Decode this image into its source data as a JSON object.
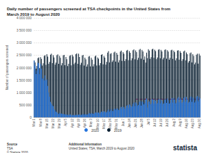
{
  "chart_data": {
    "type": "bar",
    "title": "Daily number of passengers screened at TSA checkpoints in the United States from March 2019 to August 2020",
    "y_label": "Number of passengers screened",
    "source_heading": "Source",
    "source": "TSA",
    "copyright": "© Statista 2020",
    "info_heading": "Additional Information",
    "info": "United States; TSA; March 2019 to August 2020",
    "logo": "statista",
    "categories": [
      "Mar 1",
      null,
      null,
      null,
      null,
      null,
      null,
      "Mar 8",
      null,
      null,
      null,
      null,
      null,
      null,
      "Mar 15",
      null,
      null,
      null,
      null,
      null,
      null,
      "Mar 22",
      null,
      null,
      null,
      null,
      null,
      null,
      "Mar 29",
      null,
      null,
      null,
      null,
      null,
      null,
      "Apr 5",
      null,
      null,
      null,
      null,
      null,
      null,
      "Apr 12",
      null,
      null,
      null,
      null,
      null,
      null,
      "Apr 19",
      null,
      null,
      null,
      null,
      null,
      null,
      "Apr 26",
      null,
      null,
      null,
      null,
      null,
      null,
      "May 3",
      null,
      null,
      null,
      null,
      null,
      null,
      "May 10",
      null,
      null,
      null,
      null,
      null,
      null,
      "May 17",
      null,
      null,
      null,
      null,
      null,
      null,
      "May 24",
      null,
      null,
      null,
      null,
      null,
      null,
      "May 31",
      null,
      null,
      null,
      null,
      null,
      null,
      "Jun 7",
      null,
      null,
      null,
      null,
      null,
      null,
      "Jun 14",
      null,
      null,
      null,
      null,
      null,
      null,
      "Jun 21",
      null,
      null,
      null,
      null,
      null,
      null,
      "Jun 28",
      null,
      null,
      null,
      null,
      null,
      null,
      "Jul 5",
      null,
      null,
      null,
      null,
      null,
      null,
      "Jul 12",
      null,
      null,
      null,
      null,
      null,
      null,
      "Jul 19",
      null,
      null,
      null,
      null,
      null,
      null,
      "Jul 26",
      null,
      null,
      null,
      null,
      null,
      null,
      "Aug 2",
      null,
      null,
      null,
      null,
      null,
      null,
      "Aug 9",
      null,
      null,
      null,
      null,
      null,
      null,
      "Aug 16",
      null,
      null,
      null,
      null,
      null,
      null,
      "Aug 23",
      null,
      null,
      null,
      null,
      null,
      null,
      "Aug 30",
      null
    ],
    "series": [
      {
        "name": "2020",
        "color": "#2876dd",
        "values": [
          2280000,
          2090000,
          1740000,
          1880000,
          2190000,
          2180000,
          1730000,
          2160000,
          1960000,
          1550000,
          1580000,
          1480000,
          1690000,
          1480000,
          1520000,
          1260000,
          1000000,
          830000,
          620000,
          550000,
          480000,
          450000,
          330000,
          280000,
          230000,
          200000,
          170000,
          130000,
          180000,
          150000,
          150000,
          140000,
          130000,
          130000,
          110000,
          120000,
          110000,
          100000,
          100000,
          110000,
          120000,
          90000,
          90000,
          100000,
          90000,
          90000,
          100000,
          110000,
          90000,
          110000,
          110000,
          100000,
          100000,
          120000,
          130000,
          100000,
          130000,
          120000,
          110000,
          120000,
          150000,
          170000,
          130000,
          170000,
          160000,
          140000,
          150000,
          180000,
          200000,
          170000,
          200000,
          190000,
          160000,
          180000,
          220000,
          250000,
          190000,
          250000,
          220000,
          190000,
          210000,
          270000,
          320000,
          230000,
          270000,
          340000,
          260000,
          250000,
          330000,
          350000,
          300000,
          350000,
          350000,
          300000,
          310000,
          380000,
          420000,
          330000,
          430000,
          410000,
          340000,
          370000,
          460000,
          500000,
          390000,
          520000,
          480000,
          410000,
          440000,
          540000,
          590000,
          450000,
          600000,
          560000,
          460000,
          500000,
          620000,
          650000,
          470000,
          640000,
          620000,
          520000,
          570000,
          710000,
          760000,
          390000,
          620000,
          640000,
          520000,
          550000,
          730000,
          720000,
          550000,
          710000,
          660000,
          540000,
          570000,
          710000,
          730000,
          560000,
          720000,
          650000,
          530000,
          560000,
          690000,
          740000,
          580000,
          760000,
          680000,
          550000,
          580000,
          720000,
          780000,
          590000,
          780000,
          710000,
          560000,
          590000,
          760000,
          820000,
          610000,
          790000,
          720000,
          570000,
          620000,
          780000,
          830000,
          630000,
          820000,
          730000,
          580000,
          620000,
          790000,
          840000,
          620000,
          810000,
          750000,
          590000,
          650000,
          820000,
          860000,
          640000,
          830000,
          760000
        ]
      },
      {
        "name": "2019",
        "color": "#0e2335",
        "values": [
          2280000,
          2210000,
          1960000,
          2070000,
          2380000,
          2410000,
          1980000,
          2420000,
          2350000,
          2080000,
          2170000,
          2470000,
          2500000,
          2110000,
          2540000,
          2440000,
          2150000,
          2230000,
          2520000,
          2560000,
          2180000,
          2500000,
          2410000,
          2120000,
          2200000,
          2500000,
          2530000,
          2150000,
          2470000,
          2390000,
          2090000,
          2180000,
          2490000,
          2510000,
          2100000,
          2430000,
          2340000,
          2060000,
          2150000,
          2470000,
          2500000,
          2090000,
          2520000,
          2450000,
          2140000,
          2200000,
          2540000,
          2570000,
          2150000,
          2560000,
          2430000,
          2110000,
          2190000,
          2480000,
          2510000,
          2080000,
          2400000,
          2330000,
          2040000,
          2130000,
          2440000,
          2460000,
          2050000,
          2390000,
          2320000,
          2050000,
          2140000,
          2450000,
          2480000,
          2080000,
          2410000,
          2360000,
          2090000,
          2180000,
          2510000,
          2540000,
          2130000,
          2460000,
          2400000,
          2120000,
          2230000,
          2600000,
          2660000,
          2210000,
          2550000,
          2580000,
          2230000,
          2290000,
          2610000,
          2640000,
          2240000,
          2590000,
          2520000,
          2210000,
          2300000,
          2640000,
          2680000,
          2270000,
          2620000,
          2560000,
          2260000,
          2340000,
          2680000,
          2710000,
          2300000,
          2660000,
          2590000,
          2290000,
          2370000,
          2700000,
          2730000,
          2330000,
          2690000,
          2620000,
          2310000,
          2390000,
          2720000,
          2750000,
          2360000,
          2710000,
          2650000,
          2320000,
          2450000,
          2200000,
          2600000,
          2380000,
          2740000,
          2680000,
          2350000,
          2420000,
          2730000,
          2760000,
          2390000,
          2720000,
          2660000,
          2340000,
          2410000,
          2720000,
          2740000,
          2370000,
          2710000,
          2650000,
          2330000,
          2400000,
          2710000,
          2730000,
          2360000,
          2700000,
          2640000,
          2320000,
          2390000,
          2700000,
          2720000,
          2350000,
          2680000,
          2620000,
          2290000,
          2370000,
          2680000,
          2700000,
          2320000,
          2660000,
          2590000,
          2270000,
          2340000,
          2650000,
          2680000,
          2290000,
          2610000,
          2540000,
          2200000,
          2260000,
          2580000,
          2610000,
          2210000,
          2540000,
          2470000,
          2130000,
          2200000,
          2520000,
          2560000,
          2160000,
          2560000,
          2480000
        ]
      }
    ],
    "reference_line": {
      "value": 730000,
      "start": "Jun 21",
      "color": "#e0218a",
      "line_style": "dashed"
    },
    "ylim": [
      0,
      4000000
    ],
    "yticks": [
      0,
      {
        "value": 500000,
        "label": "500 000"
      },
      {
        "value": 1000000,
        "label": "1 000 000"
      },
      {
        "value": 1500000,
        "label": "1 500 000"
      },
      {
        "value": 2000000,
        "label": "2 000 000"
      },
      {
        "value": 2500000,
        "label": "2 500 000"
      },
      {
        "value": 3000000,
        "label": "3 000 000"
      },
      {
        "value": 3500000,
        "label": "3 500 000"
      },
      {
        "value": 4000000,
        "label": "4 000 000"
      }
    ],
    "grid": true,
    "legend": "bottom"
  }
}
